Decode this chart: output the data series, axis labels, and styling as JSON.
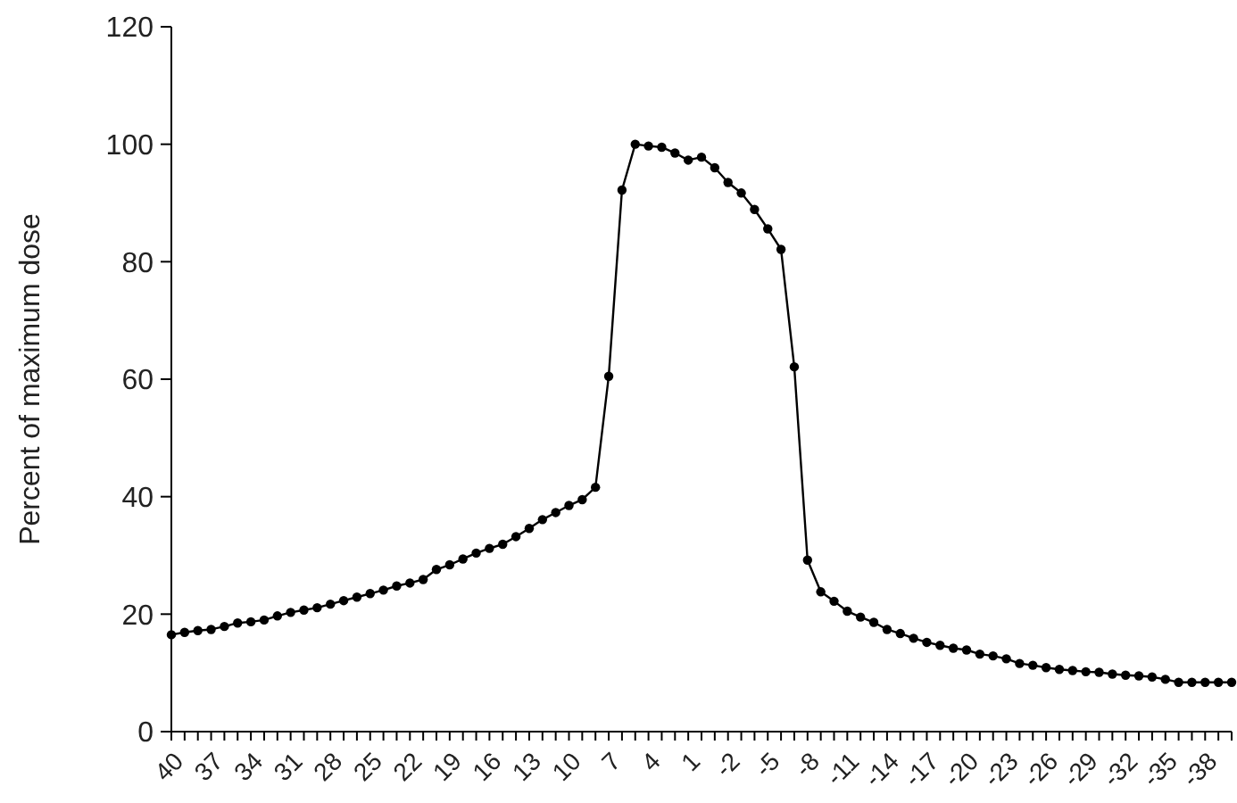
{
  "chart_data": {
    "type": "line",
    "ylabel": "Percent of maximum dose",
    "categories": [
      "40",
      null,
      null,
      "37",
      null,
      null,
      "34",
      null,
      null,
      "31",
      null,
      null,
      "28",
      null,
      null,
      "25",
      null,
      null,
      "22",
      null,
      null,
      "19",
      null,
      null,
      "16",
      null,
      null,
      "13",
      null,
      null,
      "10",
      null,
      null,
      "7",
      null,
      null,
      "4",
      null,
      null,
      "1",
      null,
      null,
      "-2",
      null,
      null,
      "-5",
      null,
      null,
      "-8",
      null,
      null,
      "-11",
      null,
      null,
      "-14",
      null,
      null,
      "-17",
      null,
      null,
      "-20",
      null,
      null,
      "-23",
      null,
      null,
      "-26",
      null,
      null,
      "-29",
      null,
      null,
      "-32",
      null,
      null,
      "-35",
      null,
      null,
      "-38",
      null,
      null
    ],
    "series": [
      {
        "color": "#000000",
        "values": [
          16.5,
          16.9,
          17.2,
          17.4,
          17.9,
          18.5,
          18.7,
          19.0,
          19.7,
          20.3,
          20.7,
          21.1,
          21.7,
          22.3,
          22.9,
          23.5,
          24.1,
          24.8,
          25.3,
          25.9,
          27.6,
          28.4,
          29.4,
          30.4,
          31.2,
          31.9,
          33.2,
          34.6,
          36.1,
          37.3,
          38.5,
          39.5,
          41.6,
          60.5,
          92.2,
          100,
          99.7,
          99.5,
          98.5,
          97.3,
          97.8,
          96.0,
          93.5,
          91.7,
          88.9,
          85.6,
          82.1,
          62.1,
          29.2,
          23.8,
          22.2,
          20.5,
          19.5,
          18.6,
          17.4,
          16.7,
          15.9,
          15.2,
          14.7,
          14.2,
          13.9,
          13.2,
          12.9,
          12.4,
          11.6,
          11.3,
          10.9,
          10.6,
          10.4,
          10.2,
          10.1,
          9.8,
          9.6,
          9.5,
          9.3,
          8.9,
          8.4,
          8.4,
          8.4,
          8.4,
          8.4
        ]
      }
    ],
    "ylim": [
      0,
      120
    ],
    "yticks": [
      0,
      20,
      40,
      60,
      80,
      100,
      120
    ],
    "marker": "circle",
    "line_style": "solid"
  }
}
